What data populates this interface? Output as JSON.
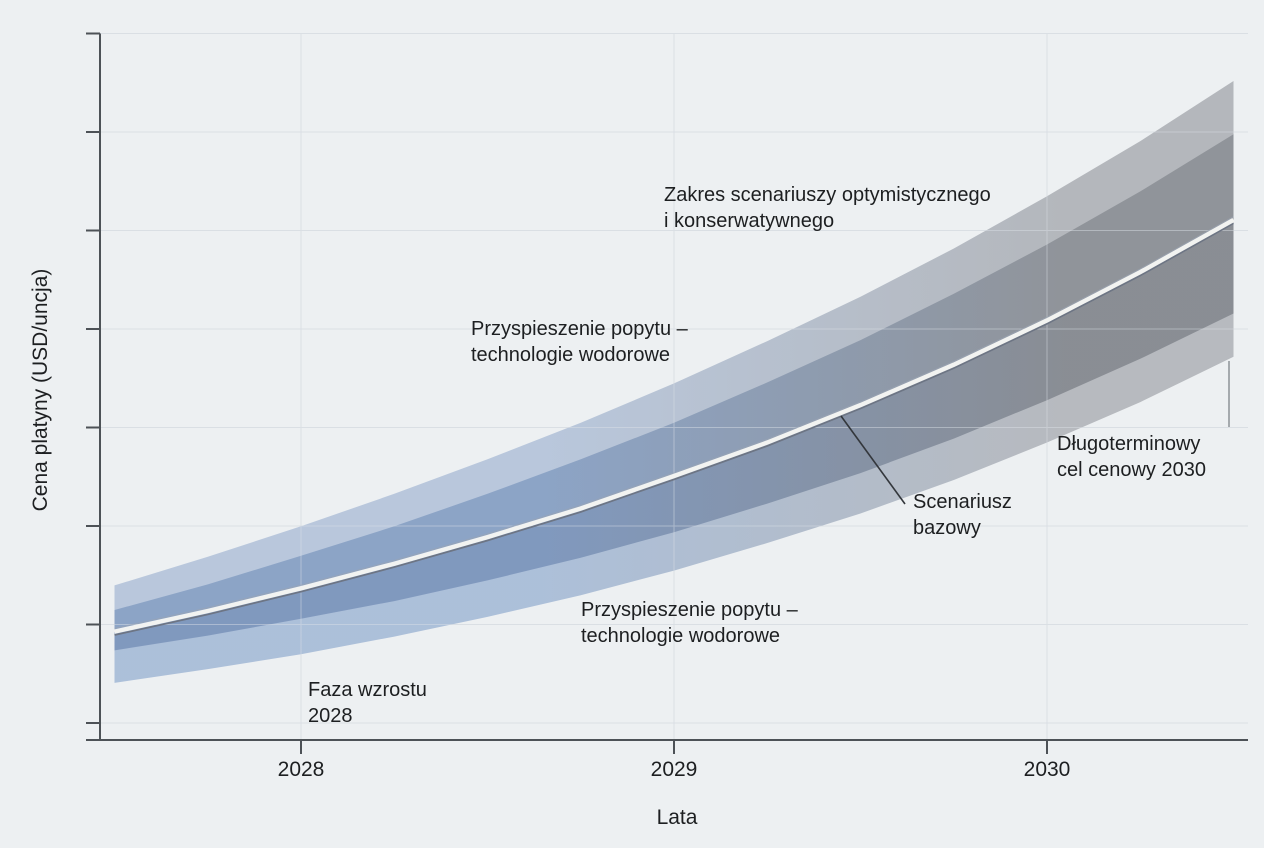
{
  "figure": {
    "background": "#edf0f2",
    "colors": {
      "axis": "#4d5257",
      "grid": "#d7dbe0",
      "grid_overlay": "#dfe4ea",
      "text": "#1d1f21",
      "band_outer_blue_top": "#b6c5db",
      "band_outer_blue_bottom": "#a9bdd8",
      "band_outer_gray_top": "#b1b4b9",
      "band_outer_gray_bottom": "#b4b7bc",
      "band_inner_blue_top": "#8aa2c5",
      "band_inner_blue_bottom": "#7e97bd",
      "band_inner_gray_top": "#8e9298",
      "band_inner_gray_bottom": "#878b92",
      "center_line": "#f2f3f1",
      "center_line_shadow": "#6d7584",
      "center_line_highlight": "#9aa4b4",
      "leader_dark": "#33373c",
      "leader_gray": "#8d9298"
    }
  },
  "chart_data": {
    "type": "area",
    "title": "",
    "xlabel": "Lata",
    "ylabel": "Cena platyny (USD/uncja)",
    "x_ticks": [
      2028,
      2029,
      2030
    ],
    "x_tick_labels": [
      "2028",
      "2029",
      "2030"
    ],
    "xlim": [
      2027.5,
      2030.5
    ],
    "ylim": [
      0,
      7.4
    ],
    "y_axis_numeric_labels": false,
    "y_unit": "indeks ceny (osie bez wartości liczbowych)",
    "grid": true,
    "legend_position": "none",
    "x": [
      2027.5,
      2027.75,
      2028,
      2028.25,
      2028.5,
      2028.75,
      2029,
      2029.25,
      2029.5,
      2029.75,
      2030,
      2030.25,
      2030.5
    ],
    "series": [
      {
        "name": "Scenariusz bazowy",
        "role": "center",
        "values": [
          1.1,
          1.31,
          1.54,
          1.79,
          2.06,
          2.35,
          2.68,
          3.02,
          3.4,
          3.81,
          4.26,
          4.75,
          5.28
        ]
      },
      {
        "name": "Przyspieszenie popytu – technologie wodorowe (górna granica)",
        "role": "inner_high",
        "values": [
          1.32,
          1.58,
          1.87,
          2.17,
          2.5,
          2.85,
          3.22,
          3.63,
          4.06,
          4.53,
          5.03,
          5.57,
          6.15
        ]
      },
      {
        "name": "Przyspieszenie popytu – technologie wodorowe (dolna granica)",
        "role": "inner_low",
        "values": [
          0.91,
          1.06,
          1.23,
          1.41,
          1.62,
          1.85,
          2.11,
          2.4,
          2.71,
          3.06,
          3.45,
          3.87,
          4.33
        ]
      },
      {
        "name": "Zakres scenariuszy – scenariusz optymistyczny (górna granica)",
        "role": "outer_high",
        "values": [
          1.57,
          1.86,
          2.17,
          2.5,
          2.85,
          3.22,
          3.62,
          4.05,
          4.5,
          4.99,
          5.52,
          6.08,
          6.69
        ]
      },
      {
        "name": "Zakres scenariuszy – scenariusz konserwatywny (dolna granica)",
        "role": "outer_low",
        "values": [
          0.58,
          0.72,
          0.87,
          1.05,
          1.25,
          1.47,
          1.72,
          2.0,
          2.3,
          2.64,
          3.02,
          3.43,
          3.89
        ]
      }
    ],
    "annotations": [
      {
        "id": "scenario-range",
        "text": "Zakres scenariuszy optymistycznego\ni konserwatywnego"
      },
      {
        "id": "hydrogen-demand-upper",
        "text": "Przyspieszenie popytu –\ntechnologie wodorowe"
      },
      {
        "id": "base-scenario",
        "text": "Scenariusz\nbazowy"
      },
      {
        "id": "long-term-target",
        "text": "Długoterminowy\ncel cenowy 2030"
      },
      {
        "id": "hydrogen-demand-lower",
        "text": "Przyspieszenie popytu –\ntechnologie wodorowe"
      },
      {
        "id": "growth-phase",
        "text": "Faza wzrostu\n2028"
      }
    ]
  }
}
